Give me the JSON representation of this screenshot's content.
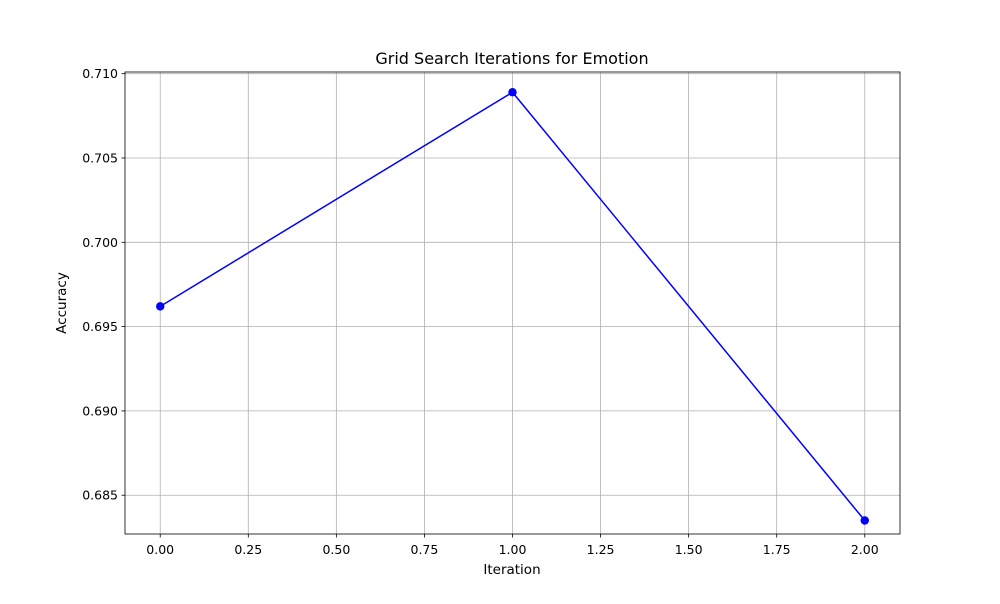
{
  "chart_data": {
    "type": "line",
    "title": "Grid Search Iterations for Emotion",
    "xlabel": "Iteration",
    "ylabel": "Accuracy",
    "x": [
      0,
      1,
      2
    ],
    "series": [
      {
        "values": [
          0.6962,
          0.7089,
          0.6835
        ],
        "color": "#0000ff",
        "marker": "circle"
      }
    ],
    "xlim": [
      -0.1,
      2.1
    ],
    "ylim": [
      0.6827,
      0.7101
    ],
    "x_ticks": [
      "0.00",
      "0.25",
      "0.50",
      "0.75",
      "1.00",
      "1.25",
      "1.50",
      "1.75",
      "2.00"
    ],
    "y_ticks": [
      "0.685",
      "0.690",
      "0.695",
      "0.700",
      "0.705",
      "0.710"
    ],
    "grid": true,
    "legend": "none"
  }
}
